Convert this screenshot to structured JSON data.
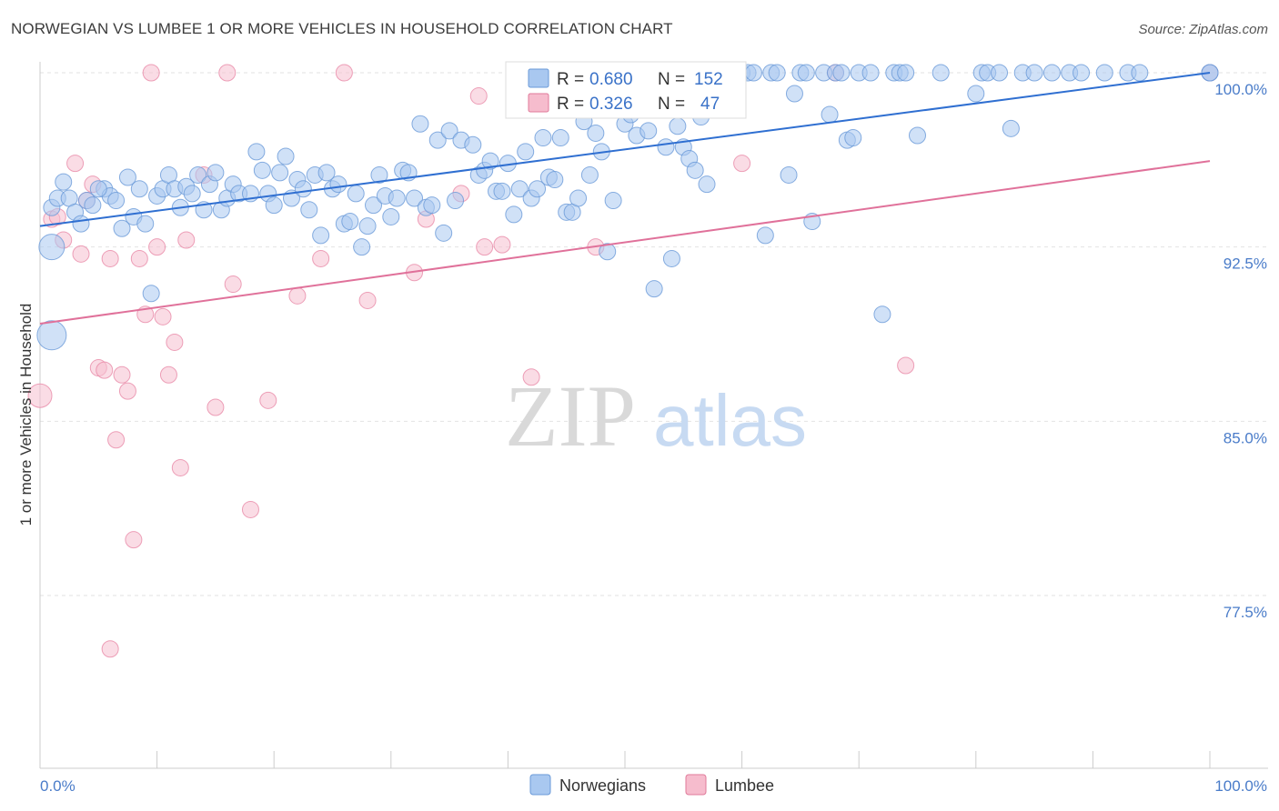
{
  "title": "NORWEGIAN VS LUMBEE 1 OR MORE VEHICLES IN HOUSEHOLD CORRELATION CHART",
  "source": "Source: ZipAtlas.com",
  "watermark": {
    "zip": "ZIP",
    "atlas": "atlas"
  },
  "legend": {
    "r_label": "R =",
    "n_label": "N =",
    "rows": [
      {
        "r": "0.680",
        "n": "152",
        "color": "#a9c8f0",
        "stroke": "#5b8fd6"
      },
      {
        "r": "0.326",
        "n": "47",
        "color": "#f6bccd",
        "stroke": "#e07a9a"
      }
    ]
  },
  "bottom_legend": [
    "Norwegians",
    "Lumbee"
  ],
  "colors": {
    "blue_fill": "#a9c8f0",
    "blue_stroke": "#6a9ad8",
    "blue_line": "#2f6fd1",
    "pink_fill": "#f6c0d0",
    "pink_stroke": "#e88aa8",
    "pink_line": "#e0719a",
    "tick_text": "#4a7cc9"
  },
  "chart_data": {
    "type": "scatter",
    "title": "NORWEGIAN VS LUMBEE 1 OR MORE VEHICLES IN HOUSEHOLD CORRELATION CHART",
    "xlabel": "",
    "ylabel": "1 or more Vehicles in Household",
    "xlim": [
      0,
      100
    ],
    "ylim": [
      70,
      101.5
    ],
    "x_tick_labels": [
      "0.0%",
      "100.0%"
    ],
    "y_ticks": [
      77.5,
      85.0,
      92.5,
      100.0
    ],
    "y_tick_labels": [
      "77.5%",
      "85.0%",
      "92.5%",
      "100.0%"
    ],
    "grid": true,
    "legend_position": "top-center",
    "series": [
      {
        "name": "Norwegians",
        "R": 0.68,
        "N": 152,
        "trend": [
          [
            0,
            93.4
          ],
          [
            100,
            100.0
          ]
        ],
        "points": [
          [
            1,
            94.2
          ],
          [
            1.5,
            94.6
          ],
          [
            2,
            95.3
          ],
          [
            2.5,
            94.6
          ],
          [
            3,
            94.0
          ],
          [
            3.5,
            93.5
          ],
          [
            4,
            94.5
          ],
          [
            4.5,
            94.3
          ],
          [
            5.5,
            95.0
          ],
          [
            6,
            94.7
          ],
          [
            6.5,
            94.5
          ],
          [
            7,
            93.3
          ],
          [
            7.5,
            95.5
          ],
          [
            8,
            93.8
          ],
          [
            8.5,
            95.0
          ],
          [
            9,
            93.5
          ],
          [
            9.5,
            90.5
          ],
          [
            10,
            94.7
          ],
          [
            10.5,
            95.0
          ],
          [
            11,
            95.6
          ],
          [
            11.5,
            95.0
          ],
          [
            12,
            94.2
          ],
          [
            12.5,
            95.1
          ],
          [
            13,
            94.8
          ],
          [
            13.5,
            95.6
          ],
          [
            14,
            94.1
          ],
          [
            14.5,
            95.2
          ],
          [
            15,
            95.7
          ],
          [
            15.5,
            94.1
          ],
          [
            16,
            94.6
          ],
          [
            16.5,
            95.2
          ],
          [
            17,
            94.8
          ],
          [
            18,
            94.8
          ],
          [
            18.5,
            96.6
          ],
          [
            19,
            95.8
          ],
          [
            19.5,
            94.8
          ],
          [
            20,
            94.3
          ],
          [
            20.5,
            95.7
          ],
          [
            21,
            96.4
          ],
          [
            21.5,
            94.6
          ],
          [
            22,
            95.4
          ],
          [
            22.5,
            95.0
          ],
          [
            23,
            94.1
          ],
          [
            23.5,
            95.6
          ],
          [
            24,
            93.0
          ],
          [
            24.5,
            95.7
          ],
          [
            25,
            95.0
          ],
          [
            25.5,
            95.2
          ],
          [
            26,
            93.5
          ],
          [
            26.5,
            93.6
          ],
          [
            27,
            94.8
          ],
          [
            27.5,
            92.5
          ],
          [
            28,
            93.4
          ],
          [
            28.5,
            94.3
          ],
          [
            29,
            95.6
          ],
          [
            29.5,
            94.7
          ],
          [
            30,
            93.8
          ],
          [
            30.5,
            94.6
          ],
          [
            31,
            95.8
          ],
          [
            31.5,
            95.7
          ],
          [
            32,
            94.6
          ],
          [
            32.5,
            97.8
          ],
          [
            33,
            94.2
          ],
          [
            33.5,
            94.3
          ],
          [
            34,
            97.1
          ],
          [
            34.5,
            93.1
          ],
          [
            35,
            97.5
          ],
          [
            35.5,
            94.5
          ],
          [
            36,
            97.1
          ],
          [
            37,
            96.9
          ],
          [
            37.5,
            95.6
          ],
          [
            38,
            95.8
          ],
          [
            38.5,
            96.2
          ],
          [
            39,
            94.9
          ],
          [
            39.5,
            94.9
          ],
          [
            40,
            96.1
          ],
          [
            40.5,
            93.9
          ],
          [
            41,
            95.0
          ],
          [
            41.5,
            96.6
          ],
          [
            42,
            94.6
          ],
          [
            42.5,
            95.0
          ],
          [
            43,
            97.2
          ],
          [
            43.5,
            95.5
          ],
          [
            44,
            95.4
          ],
          [
            44.5,
            97.2
          ],
          [
            45,
            94.0
          ],
          [
            45.5,
            94.0
          ],
          [
            46,
            94.6
          ],
          [
            46.5,
            97.9
          ],
          [
            47,
            95.6
          ],
          [
            47.5,
            97.4
          ],
          [
            48,
            96.6
          ],
          [
            48.5,
            92.3
          ],
          [
            49,
            94.5
          ],
          [
            50,
            97.8
          ],
          [
            50.5,
            98.2
          ],
          [
            51,
            97.3
          ],
          [
            51.5,
            100
          ],
          [
            52,
            97.5
          ],
          [
            52.5,
            90.7
          ],
          [
            53.5,
            96.8
          ],
          [
            54,
            92.0
          ],
          [
            54.5,
            97.7
          ],
          [
            55,
            96.8
          ],
          [
            55.5,
            96.3
          ],
          [
            56,
            95.8
          ],
          [
            56.5,
            98.1
          ],
          [
            57,
            95.2
          ],
          [
            58,
            99.0
          ],
          [
            60,
            100
          ],
          [
            60.5,
            100
          ],
          [
            61,
            100
          ],
          [
            62,
            93.0
          ],
          [
            62.5,
            100
          ],
          [
            63,
            100
          ],
          [
            64,
            95.6
          ],
          [
            64.5,
            99.1
          ],
          [
            65,
            100
          ],
          [
            65.5,
            100
          ],
          [
            66,
            93.6
          ],
          [
            67,
            100
          ],
          [
            67.5,
            98.2
          ],
          [
            68,
            100
          ],
          [
            68.5,
            100
          ],
          [
            69,
            97.1
          ],
          [
            69.5,
            97.2
          ],
          [
            70,
            100
          ],
          [
            71,
            100
          ],
          [
            72,
            89.6
          ],
          [
            73,
            100
          ],
          [
            73.5,
            100
          ],
          [
            74,
            100
          ],
          [
            75,
            97.3
          ],
          [
            77,
            100
          ],
          [
            80,
            99.1
          ],
          [
            80.5,
            100
          ],
          [
            81,
            100
          ],
          [
            82,
            100
          ],
          [
            83,
            97.6
          ],
          [
            84,
            100
          ],
          [
            85,
            100
          ],
          [
            86.5,
            100
          ],
          [
            88,
            100
          ],
          [
            89,
            100
          ],
          [
            91,
            100
          ],
          [
            93,
            100
          ],
          [
            94,
            100
          ],
          [
            100,
            100
          ],
          [
            100,
            100
          ],
          [
            1,
            88.7
          ],
          [
            1,
            92.5
          ],
          [
            5,
            95.0
          ]
        ]
      },
      {
        "name": "Lumbee",
        "R": 0.326,
        "N": 47,
        "trend": [
          [
            0,
            89.2
          ],
          [
            100,
            96.2
          ]
        ],
        "points": [
          [
            0,
            86.1
          ],
          [
            1,
            93.7
          ],
          [
            1.5,
            93.8
          ],
          [
            2,
            92.8
          ],
          [
            3,
            96.1
          ],
          [
            3.5,
            92.2
          ],
          [
            4,
            94.5
          ],
          [
            4.5,
            95.2
          ],
          [
            5,
            87.3
          ],
          [
            5.5,
            87.2
          ],
          [
            6,
            92.0
          ],
          [
            6.5,
            84.2
          ],
          [
            7,
            87.0
          ],
          [
            7.5,
            86.3
          ],
          [
            8,
            79.9
          ],
          [
            8.5,
            92.0
          ],
          [
            9,
            89.6
          ],
          [
            9.5,
            100
          ],
          [
            10,
            92.5
          ],
          [
            10.5,
            89.5
          ],
          [
            11,
            87.0
          ],
          [
            11.5,
            88.4
          ],
          [
            12,
            83.0
          ],
          [
            12.5,
            92.8
          ],
          [
            14,
            95.6
          ],
          [
            15,
            85.6
          ],
          [
            16,
            100
          ],
          [
            16.5,
            90.9
          ],
          [
            18,
            81.2
          ],
          [
            19.5,
            85.9
          ],
          [
            22,
            90.4
          ],
          [
            24,
            92.0
          ],
          [
            26,
            100
          ],
          [
            28,
            90.2
          ],
          [
            32,
            91.4
          ],
          [
            33,
            93.7
          ],
          [
            36,
            94.8
          ],
          [
            37.5,
            99.0
          ],
          [
            38,
            92.5
          ],
          [
            39.5,
            92.6
          ],
          [
            42,
            86.9
          ],
          [
            47.5,
            92.5
          ],
          [
            60,
            96.1
          ],
          [
            68,
            100
          ],
          [
            74,
            87.4
          ],
          [
            6,
            75.2
          ],
          [
            100,
            100
          ]
        ]
      }
    ]
  }
}
